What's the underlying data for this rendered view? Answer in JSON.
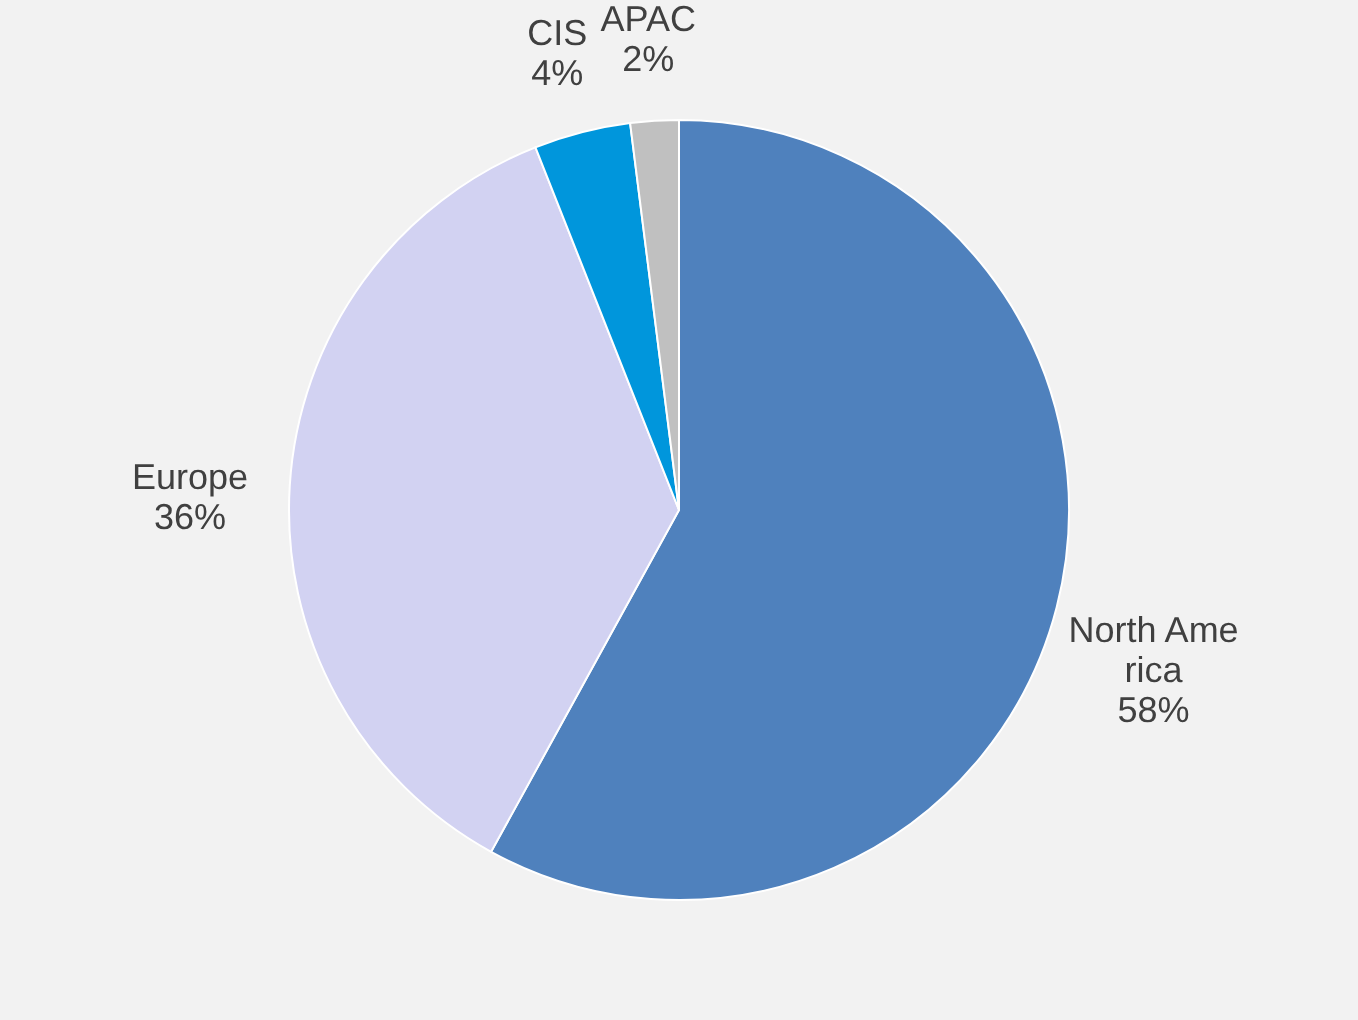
{
  "chart_data": {
    "type": "pie",
    "categories": [
      "North America",
      "Europe",
      "CIS",
      "APAC"
    ],
    "values": [
      58,
      36,
      4,
      2
    ],
    "colors": [
      "#4f81bd",
      "#d2d2f2",
      "#0096dc",
      "#c0c0c0"
    ],
    "value_labels": [
      "58%",
      "36%",
      "4%",
      "2%"
    ],
    "legend": false
  }
}
